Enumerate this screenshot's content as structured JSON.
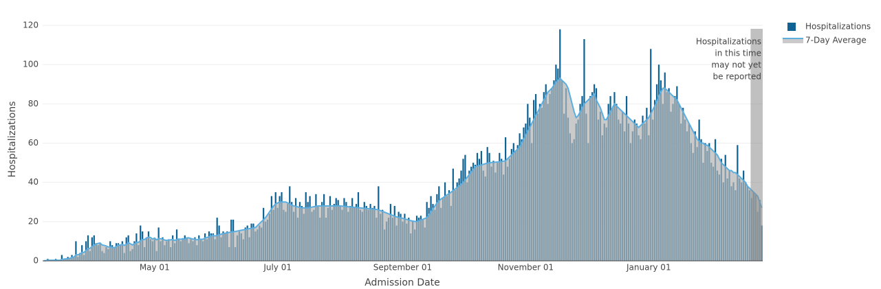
{
  "chart_data": {
    "type": "bar",
    "x_label": "Admission Date",
    "y_label": "Hospitalizations",
    "annotation": [
      "Hospitalizations",
      "in this time",
      "may not yet",
      "be reported"
    ],
    "legend": "top-right",
    "grid": true,
    "ylim": [
      0,
      120
    ],
    "yticks": [
      0,
      20,
      40,
      60,
      80,
      100,
      120
    ],
    "xticks": [
      "May 01",
      "July 01",
      "September 01",
      "November 01",
      "January 01"
    ],
    "x": [
      "March 07",
      "March 08",
      "March 09",
      "March 10",
      "March 11",
      "March 12",
      "March 13",
      "March 14",
      "March 15",
      "March 16",
      "March 17",
      "March 18",
      "March 19",
      "March 20",
      "March 21",
      "March 22",
      "March 23",
      "March 24",
      "March 25",
      "March 26",
      "March 27",
      "March 28",
      "March 29",
      "March 30",
      "March 31",
      "April 01",
      "April 02",
      "April 03",
      "April 04",
      "April 05",
      "April 06",
      "April 07",
      "April 08",
      "April 09",
      "April 10",
      "April 11",
      "April 12",
      "April 13",
      "April 14",
      "April 15",
      "April 16",
      "April 17",
      "April 18",
      "April 19",
      "April 20",
      "April 21",
      "April 22",
      "April 23",
      "April 24",
      "April 25",
      "April 26",
      "April 27",
      "April 28",
      "April 29",
      "April 30",
      "May 01",
      "May 02",
      "May 03",
      "May 04",
      "May 05",
      "May 06",
      "May 07",
      "May 08",
      "May 09",
      "May 10",
      "May 11",
      "May 12",
      "May 13",
      "May 14",
      "May 15",
      "May 16",
      "May 17",
      "May 18",
      "May 19",
      "May 20",
      "May 21",
      "May 22",
      "May 23",
      "May 24",
      "May 25",
      "May 26",
      "May 27",
      "May 28",
      "May 29",
      "May 30",
      "May 31",
      "June 01",
      "June 02",
      "June 03",
      "June 04",
      "June 05",
      "June 06",
      "June 07",
      "June 08",
      "June 09",
      "June 10",
      "June 11",
      "June 12",
      "June 13",
      "June 14",
      "June 15",
      "June 16",
      "June 17",
      "June 18",
      "June 19",
      "June 20",
      "June 21",
      "June 22",
      "June 23",
      "June 24",
      "June 25",
      "June 26",
      "June 27",
      "June 28",
      "June 29",
      "June 30",
      "July 01",
      "July 02",
      "July 03",
      "July 04",
      "July 05",
      "July 06",
      "July 07",
      "July 08",
      "July 09",
      "July 10",
      "July 11",
      "July 12",
      "July 13",
      "July 14",
      "July 15",
      "July 16",
      "July 17",
      "July 18",
      "July 19",
      "July 20",
      "July 21",
      "July 22",
      "July 23",
      "July 24",
      "July 25",
      "July 26",
      "July 27",
      "July 28",
      "July 29",
      "July 30",
      "July 31",
      "August 01",
      "August 02",
      "August 03",
      "August 04",
      "August 05",
      "August 06",
      "August 07",
      "August 08",
      "August 09",
      "August 10",
      "August 11",
      "August 12",
      "August 13",
      "August 14",
      "August 15",
      "August 16",
      "August 17",
      "August 18",
      "August 19",
      "August 20",
      "August 21",
      "August 22",
      "August 23",
      "August 24",
      "August 25",
      "August 26",
      "August 27",
      "August 28",
      "August 29",
      "August 30",
      "August 31",
      "September 01",
      "September 02",
      "September 03",
      "September 04",
      "September 05",
      "September 06",
      "September 07",
      "September 08",
      "September 09",
      "September 10",
      "September 11",
      "September 12",
      "September 13",
      "September 14",
      "September 15",
      "September 16",
      "September 17",
      "September 18",
      "September 19",
      "September 20",
      "September 21",
      "September 22",
      "September 23",
      "September 24",
      "September 25",
      "September 26",
      "September 27",
      "September 28",
      "September 29",
      "September 30",
      "October 01",
      "October 02",
      "October 03",
      "October 04",
      "October 05",
      "October 06",
      "October 07",
      "October 08",
      "October 09",
      "October 10",
      "October 11",
      "October 12",
      "October 13",
      "October 14",
      "October 15",
      "October 16",
      "October 17",
      "October 18",
      "October 19",
      "October 20",
      "October 21",
      "October 22",
      "October 23",
      "October 24",
      "October 25",
      "October 26",
      "October 27",
      "October 28",
      "October 29",
      "October 30",
      "October 31",
      "November 01",
      "November 02",
      "November 03",
      "November 04",
      "November 05",
      "November 06",
      "November 07",
      "November 08",
      "November 09",
      "November 10",
      "November 11",
      "November 12",
      "November 13",
      "November 14",
      "November 15",
      "November 16",
      "November 17",
      "November 18",
      "November 19",
      "November 20",
      "November 21",
      "November 22",
      "November 23",
      "November 24",
      "November 25",
      "November 26",
      "November 27",
      "November 28",
      "November 29",
      "November 30",
      "December 01",
      "December 02",
      "December 03",
      "December 04",
      "December 05",
      "December 06",
      "December 07",
      "December 08",
      "December 09",
      "December 10",
      "December 11",
      "December 12",
      "December 13",
      "December 14",
      "December 15",
      "December 16",
      "December 17",
      "December 18",
      "December 19",
      "December 20",
      "December 21",
      "December 22",
      "December 23",
      "December 24",
      "December 25",
      "December 26",
      "December 27",
      "December 28",
      "December 29",
      "December 30",
      "December 31",
      "January 01",
      "January 02",
      "January 03",
      "January 04",
      "January 05",
      "January 06",
      "January 07",
      "January 08",
      "January 09",
      "January 10",
      "January 11",
      "January 12",
      "January 13",
      "January 14",
      "January 15",
      "January 16",
      "January 17",
      "January 18",
      "January 19",
      "January 20",
      "January 21",
      "January 22",
      "January 23",
      "January 24",
      "January 25",
      "January 26",
      "January 27",
      "January 28",
      "January 29",
      "January 30",
      "January 31",
      "February 01",
      "February 02",
      "February 03",
      "February 04",
      "February 05",
      "February 06",
      "February 07",
      "February 08",
      "February 09",
      "February 10",
      "February 11",
      "February 12",
      "February 13",
      "February 14",
      "February 15",
      "February 16",
      "February 17",
      "February 18",
      "February 19",
      "February 20",
      "February 21",
      "February 22",
      "February 23",
      "February 24",
      "February 25",
      "February 26"
    ],
    "series": [
      {
        "name": "Hospitalizations",
        "type": "bar",
        "color": "#0f6394",
        "values": [
          0,
          0,
          1,
          0,
          0,
          0,
          1,
          0,
          0,
          3,
          1,
          1,
          2,
          1,
          3,
          2,
          10,
          2,
          4,
          8,
          3,
          10,
          13,
          5,
          12,
          13,
          9,
          8,
          9,
          5,
          4,
          7,
          6,
          10,
          8,
          7,
          9,
          9,
          8,
          10,
          4,
          12,
          13,
          5,
          6,
          10,
          14,
          8,
          18,
          15,
          7,
          12,
          15,
          11,
          10,
          11,
          5,
          17,
          10,
          12,
          8,
          10,
          11,
          7,
          13,
          9,
          16,
          11,
          10,
          11,
          13,
          12,
          9,
          11,
          10,
          12,
          8,
          13,
          11,
          10,
          14,
          11,
          15,
          14,
          14,
          11,
          22,
          18,
          12,
          15,
          14,
          15,
          7,
          21,
          21,
          7,
          13,
          15,
          14,
          11,
          17,
          18,
          12,
          19,
          19,
          15,
          16,
          18,
          17,
          27,
          20,
          21,
          24,
          33,
          26,
          35,
          27,
          33,
          35,
          26,
          25,
          29,
          38,
          30,
          25,
          32,
          22,
          30,
          28,
          24,
          35,
          30,
          33,
          25,
          26,
          34,
          28,
          22,
          30,
          34,
          22,
          27,
          33,
          26,
          29,
          32,
          31,
          28,
          26,
          32,
          30,
          25,
          28,
          32,
          27,
          29,
          35,
          26,
          25,
          30,
          28,
          26,
          29,
          27,
          28,
          22,
          38,
          24,
          26,
          16,
          20,
          22,
          29,
          22,
          28,
          18,
          25,
          24,
          20,
          24,
          19,
          22,
          14,
          20,
          16,
          23,
          22,
          23,
          21,
          17,
          30,
          27,
          33,
          29,
          26,
          34,
          38,
          27,
          32,
          40,
          33,
          36,
          28,
          47,
          36,
          40,
          42,
          46,
          52,
          54,
          40,
          46,
          48,
          50,
          49,
          55,
          52,
          56,
          46,
          43,
          58,
          55,
          48,
          51,
          45,
          50,
          55,
          52,
          44,
          63,
          48,
          52,
          57,
          60,
          56,
          59,
          65,
          62,
          68,
          70,
          80,
          73,
          60,
          82,
          85,
          75,
          80,
          78,
          86,
          90,
          80,
          85,
          88,
          92,
          100,
          98,
          118,
          92,
          75,
          88,
          73,
          65,
          60,
          62,
          70,
          72,
          80,
          84,
          113,
          75,
          60,
          84,
          86,
          90,
          88,
          72,
          76,
          64,
          70,
          68,
          80,
          84,
          78,
          86,
          80,
          72,
          70,
          76,
          66,
          84,
          70,
          60,
          66,
          72,
          70,
          64,
          62,
          74,
          70,
          78,
          64,
          108,
          72,
          82,
          90,
          100,
          92,
          80,
          96,
          86,
          88,
          76,
          80,
          84,
          89,
          80,
          70,
          78,
          72,
          66,
          70,
          60,
          55,
          66,
          58,
          72,
          62,
          50,
          60,
          56,
          60,
          50,
          48,
          62,
          46,
          44,
          52,
          40,
          54,
          42,
          46,
          38,
          40,
          36,
          59,
          42,
          40,
          46,
          40,
          38,
          36,
          32,
          35,
          34,
          25,
          31,
          18
        ]
      },
      {
        "name": "7-Day Average",
        "type": "line",
        "color": "#5aaee0",
        "fill": "#b4b4b4",
        "values": [
          0.1,
          0.1,
          0.3,
          0.3,
          0.3,
          0.3,
          0.4,
          0.3,
          0.3,
          0.7,
          0.9,
          1,
          1.1,
          1.3,
          1.7,
          1.9,
          3.1,
          3.1,
          3.4,
          4.3,
          4.3,
          5.3,
          6.3,
          6.4,
          7.3,
          8.1,
          8.6,
          8.9,
          9.1,
          8.1,
          7.9,
          7.6,
          7.1,
          7.1,
          6.9,
          6.7,
          7.3,
          8.0,
          8.1,
          8.4,
          7.9,
          8.4,
          9.3,
          8.7,
          8.1,
          8.7,
          9.4,
          9.4,
          10.4,
          10.9,
          10.9,
          11.6,
          12.1,
          11.9,
          11.1,
          11.6,
          10.7,
          11.4,
          11.3,
          11.1,
          10.6,
          10.4,
          10.6,
          10.7,
          10.9,
          10.4,
          10.9,
          11.1,
          11.0,
          11.3,
          11.0,
          11.7,
          11.7,
          11.4,
          11.1,
          11.1,
          10.7,
          11.1,
          11.0,
          11.0,
          11.7,
          11.9,
          12.3,
          12.7,
          13.0,
          12.7,
          13,
          13.3,
          13.6,
          13.9,
          14.1,
          14.3,
          14.5,
          14.7,
          14.8,
          15,
          15.2,
          15.4,
          15.6,
          15.8,
          16,
          16.2,
          16.4,
          16.6,
          16.8,
          17,
          18,
          19,
          20,
          21,
          22,
          23.5,
          25,
          26.5,
          28,
          29,
          29.5,
          30,
          30,
          30,
          30,
          29.5,
          29,
          28.5,
          28,
          27.8,
          27.5,
          27.3,
          27,
          27,
          27,
          27,
          27.2,
          27.4,
          27.6,
          27.8,
          28,
          28,
          28,
          28,
          28,
          28,
          28,
          28,
          28,
          28,
          28,
          28,
          27.9,
          27.8,
          27.7,
          27.6,
          27.5,
          27.4,
          27.3,
          27.2,
          27.1,
          27,
          26.9,
          26.8,
          26.7,
          26.6,
          26.5,
          26.4,
          26.3,
          26.2,
          26,
          25.6,
          25.2,
          24.8,
          24.4,
          24,
          23.6,
          23.2,
          22.8,
          22.4,
          22.2,
          22,
          21.7,
          21.4,
          21.1,
          20.8,
          20.5,
          20.3,
          20.1,
          20,
          20.4,
          20.8,
          21.2,
          21.6,
          22,
          23.5,
          25,
          26.5,
          28,
          29.5,
          30.5,
          31.5,
          32.2,
          32.9,
          33.6,
          34.3,
          35,
          35.8,
          36.6,
          37.4,
          38.2,
          39,
          40,
          41.3,
          42.6,
          44,
          45.3,
          46.6,
          48,
          48.3,
          48.6,
          48.9,
          49.2,
          49.5,
          49.8,
          50,
          50.1,
          50.2,
          50.3,
          50.4,
          50.5,
          50.6,
          50.8,
          51,
          52,
          53,
          54,
          55,
          56,
          57,
          58,
          60,
          62,
          64,
          66,
          68,
          70,
          72,
          74,
          76,
          78,
          80,
          82,
          84,
          86,
          87,
          88,
          89.5,
          91,
          92,
          93,
          92,
          91,
          90,
          88,
          84,
          80,
          76,
          73,
          74,
          76,
          78,
          80,
          81,
          82,
          83,
          84,
          85,
          82,
          80,
          78,
          75,
          72,
          72,
          74,
          76,
          78,
          80,
          79,
          78,
          77,
          76,
          75,
          74,
          73,
          72,
          71,
          70,
          69,
          68,
          69,
          70,
          71,
          72,
          73,
          75,
          77,
          79,
          81,
          84,
          86,
          88,
          88,
          87,
          86,
          85,
          84,
          83,
          82,
          80,
          78,
          76,
          74,
          72,
          70,
          68,
          66,
          64,
          62,
          61,
          60,
          60,
          59,
          59,
          58,
          57,
          56,
          55,
          54,
          52,
          50,
          49,
          48,
          47,
          46,
          46,
          45,
          45,
          44,
          43,
          42,
          41,
          40,
          38,
          37,
          36,
          35,
          34,
          33,
          30,
          27
        ]
      }
    ]
  }
}
